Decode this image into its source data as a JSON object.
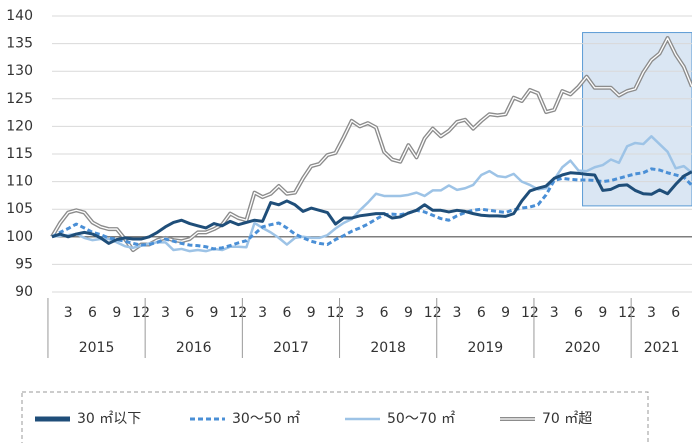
{
  "chart_data": {
    "type": "line",
    "categories": [
      null,
      null,
      "3",
      null,
      null,
      "6",
      null,
      null,
      "9",
      null,
      null,
      "12",
      null,
      null,
      "3",
      null,
      null,
      "6",
      null,
      null,
      "9",
      null,
      null,
      "12",
      null,
      null,
      "3",
      null,
      null,
      "6",
      null,
      null,
      "9",
      null,
      null,
      "12",
      null,
      null,
      "3",
      null,
      null,
      "6",
      null,
      null,
      "9",
      null,
      null,
      "12",
      null,
      null,
      "3",
      null,
      null,
      "6",
      null,
      null,
      "9",
      null,
      null,
      "12",
      null,
      null,
      "3",
      null,
      null,
      "6",
      null,
      null,
      "9",
      null,
      null,
      "12",
      null,
      null,
      "3",
      null,
      null,
      "6",
      null,
      null
    ],
    "year_groups": [
      {
        "label": "2015",
        "start": 0,
        "end": 11
      },
      {
        "label": "2016",
        "start": 12,
        "end": 23
      },
      {
        "label": "2017",
        "start": 24,
        "end": 35
      },
      {
        "label": "2018",
        "start": 36,
        "end": 47
      },
      {
        "label": "2019",
        "start": 48,
        "end": 59
      },
      {
        "label": "2020",
        "start": 60,
        "end": 71
      },
      {
        "label": "2021",
        "start": 72,
        "end": 79
      }
    ],
    "series": [
      {
        "name": "30 ㎡以下",
        "color": "#1f4e79",
        "style": "solid",
        "values": [
          100,
          100.5,
          100,
          100.5,
          100.8,
          100.5,
          99.8,
          98.8,
          99.5,
          99.8,
          99.6,
          99.6,
          100,
          100.8,
          101.8,
          102.6,
          103,
          102.4,
          102,
          101.6,
          102.4,
          102,
          102.8,
          102.2,
          102.6,
          103,
          102.8,
          106.2,
          105.8,
          106.5,
          105.8,
          104.6,
          105.2,
          104.8,
          104.4,
          102.3,
          103.4,
          103.4,
          103.8,
          104,
          104.2,
          104.2,
          103.4,
          103.6,
          104.3,
          104.8,
          105.8,
          104.8,
          104.8,
          104.5,
          104.8,
          104.6,
          104.2,
          103.9,
          103.8,
          103.8,
          103.7,
          104.2,
          106.5,
          108.3,
          108.8,
          109.2,
          110.6,
          111.2,
          111.6,
          111.5,
          111.3,
          111.2,
          108.4,
          108.6,
          109.3,
          109.4,
          108.4,
          107.8,
          107.7,
          108.5,
          107.8,
          109.5,
          111,
          111.8
        ]
      },
      {
        "name": "30～50 ㎡",
        "color": "#4a8fd6",
        "style": "dashed",
        "values": [
          100,
          100.8,
          101.5,
          102.3,
          101.6,
          100.8,
          100.4,
          99.8,
          99.5,
          99.2,
          98.8,
          98.5,
          98.6,
          99,
          99.6,
          99.2,
          98.8,
          98.5,
          98.4,
          98.2,
          97.8,
          98,
          98.4,
          98.9,
          99.3,
          100.5,
          101.8,
          102.2,
          102.5,
          101.6,
          100.5,
          99.8,
          99.2,
          98.8,
          98.6,
          99.5,
          100.2,
          101,
          101.6,
          102.3,
          103.2,
          104,
          104.1,
          104,
          104.3,
          104.8,
          104.5,
          103.9,
          103.3,
          103,
          103.8,
          104.4,
          104.8,
          105,
          104.8,
          104.6,
          104.4,
          104.9,
          105.2,
          105.4,
          105.8,
          107.6,
          110.2,
          110.6,
          110.4,
          110.3,
          110.3,
          110.2,
          110,
          110.2,
          110.6,
          111,
          111.4,
          111.6,
          112.3,
          112.1,
          111.6,
          111.2,
          110.8,
          109.3
        ]
      },
      {
        "name": "50～70 ㎡",
        "color": "#9dc3e6",
        "style": "solid",
        "values": [
          100,
          100.2,
          100.3,
          100.5,
          99.8,
          99.4,
          99.6,
          99.6,
          99,
          98.3,
          98,
          98.4,
          98.8,
          99,
          99,
          97.6,
          97.8,
          97.4,
          97.6,
          97.4,
          97.8,
          97.6,
          98.2,
          98.2,
          98.1,
          102.5,
          101.6,
          100.8,
          99.8,
          98.6,
          99.8,
          100,
          99.8,
          99.8,
          100.3,
          101.5,
          102.5,
          103.2,
          104.8,
          106.2,
          107.8,
          107.4,
          107.4,
          107.4,
          107.6,
          108,
          107.4,
          108.4,
          108.4,
          109.3,
          108.5,
          108.8,
          109.4,
          111.2,
          111.9,
          111,
          110.8,
          111.4,
          110,
          109.4,
          108.6,
          108.8,
          110.4,
          112.6,
          113.8,
          112,
          111.9,
          112.6,
          113,
          114,
          113.4,
          116.4,
          117,
          116.8,
          118.2,
          116.8,
          115.4,
          112.4,
          112.8,
          111.6
        ]
      },
      {
        "name": "70 ㎡超",
        "color": "#8c8c8c",
        "style": "double",
        "values": [
          100,
          102.5,
          104.4,
          104.8,
          104.4,
          102.6,
          101.8,
          101.4,
          101.4,
          99.6,
          97.6,
          98.6,
          98.6,
          99.4,
          99.8,
          99.4,
          99.2,
          99.6,
          100.8,
          100.8,
          101.4,
          102.2,
          104.2,
          103.4,
          103,
          108,
          107.2,
          107.8,
          109.2,
          107.8,
          108,
          110.6,
          112.8,
          113.2,
          114.8,
          115.2,
          118,
          121,
          120,
          120.6,
          119.8,
          115.4,
          114,
          113.6,
          116.6,
          114.4,
          117.8,
          119.6,
          118.2,
          119.2,
          120.8,
          121.2,
          119.6,
          121,
          122.2,
          122,
          122.2,
          125.2,
          124.6,
          126.6,
          126,
          122.6,
          123,
          126.4,
          125.8,
          127.2,
          129,
          127,
          127,
          127,
          125.6,
          126.4,
          126.8,
          129.8,
          132,
          133.2,
          136,
          133,
          130.8,
          127.2
        ]
      }
    ],
    "ylim": [
      90,
      140
    ],
    "yticks": [
      90,
      95,
      100,
      105,
      110,
      115,
      120,
      125,
      130,
      135,
      140
    ],
    "grid": true,
    "reference_line": 100,
    "highlight": {
      "start": 66,
      "end": 79,
      "ylim": [
        105.6,
        137
      ],
      "color": "#dae6f3"
    },
    "legend": "bottom"
  }
}
